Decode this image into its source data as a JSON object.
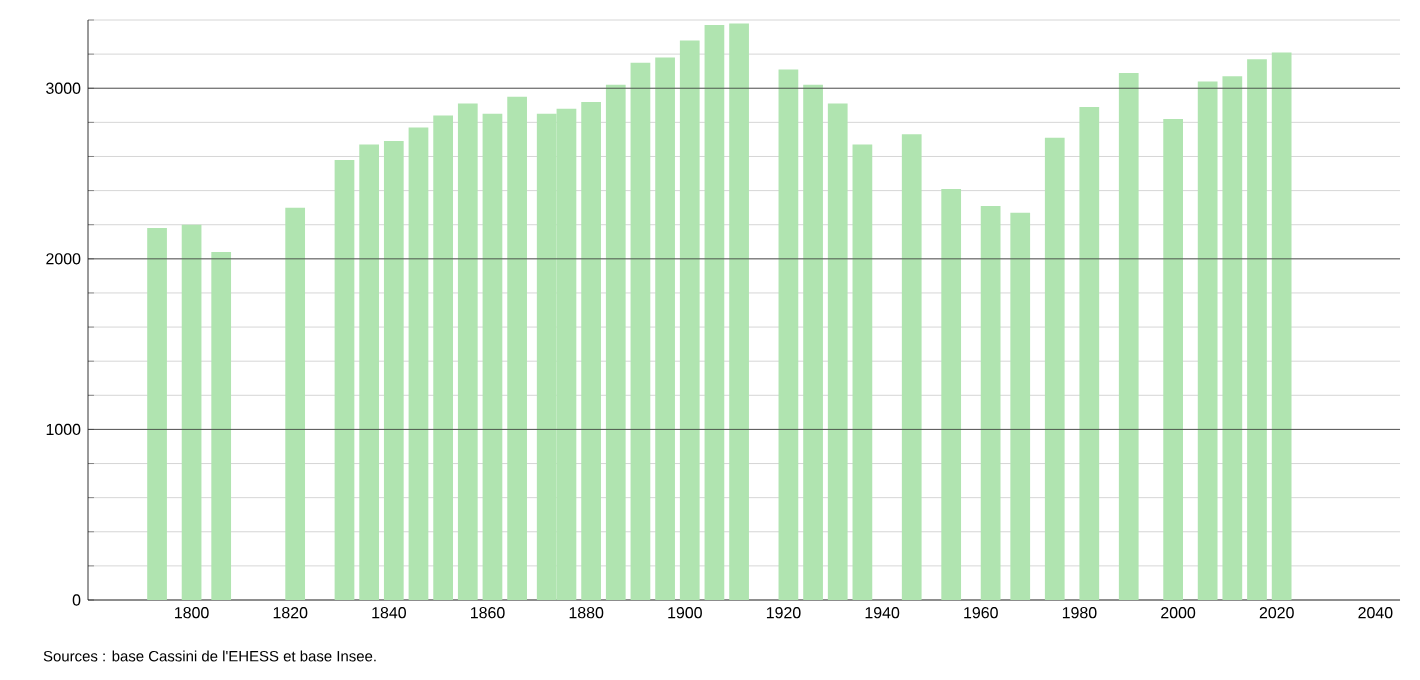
{
  "chart_data": {
    "type": "bar",
    "x": [
      1793,
      1800,
      1806,
      1821,
      1831,
      1836,
      1841,
      1846,
      1851,
      1856,
      1861,
      1866,
      1872,
      1876,
      1881,
      1886,
      1891,
      1896,
      1901,
      1906,
      1911,
      1921,
      1926,
      1931,
      1936,
      1946,
      1954,
      1962,
      1968,
      1975,
      1982,
      1990,
      1999,
      2006,
      2011,
      2016,
      2021
    ],
    "values": [
      2180,
      2200,
      2040,
      2300,
      2580,
      2670,
      2690,
      2770,
      2840,
      2910,
      2850,
      2950,
      2850,
      2880,
      2920,
      3020,
      3150,
      3180,
      3280,
      3370,
      3380,
      3110,
      3020,
      2910,
      2670,
      2730,
      2410,
      2310,
      2270,
      2710,
      2890,
      3090,
      2820,
      3040,
      3070,
      3170,
      3210
    ],
    "color": "#b0e4b0",
    "xlim": [
      1779,
      2045
    ],
    "xticks": [
      1800,
      1820,
      1840,
      1860,
      1880,
      1900,
      1920,
      1940,
      1960,
      1980,
      2000,
      2020,
      2040
    ],
    "ylim": [
      0,
      3400
    ],
    "yticks": [
      0,
      {
        "value": 200,
        "label": null
      },
      {
        "value": 400,
        "label": null
      },
      {
        "value": 600,
        "label": null
      },
      {
        "value": 800,
        "label": null
      },
      1000,
      {
        "value": 1200,
        "label": null
      },
      {
        "value": 1400,
        "label": null
      },
      {
        "value": 1600,
        "label": null
      },
      {
        "value": 1800,
        "label": null
      },
      2000,
      {
        "value": 2200,
        "label": null
      },
      {
        "value": 2400,
        "label": null
      },
      {
        "value": 2600,
        "label": null
      },
      {
        "value": 2800,
        "label": null
      },
      3000,
      {
        "value": 3200,
        "label": null
      },
      {
        "value": 3400,
        "label": null
      }
    ],
    "grid": "y",
    "annotations": [
      "Sources : base Cassini de l'EHESS et base Insee."
    ]
  }
}
